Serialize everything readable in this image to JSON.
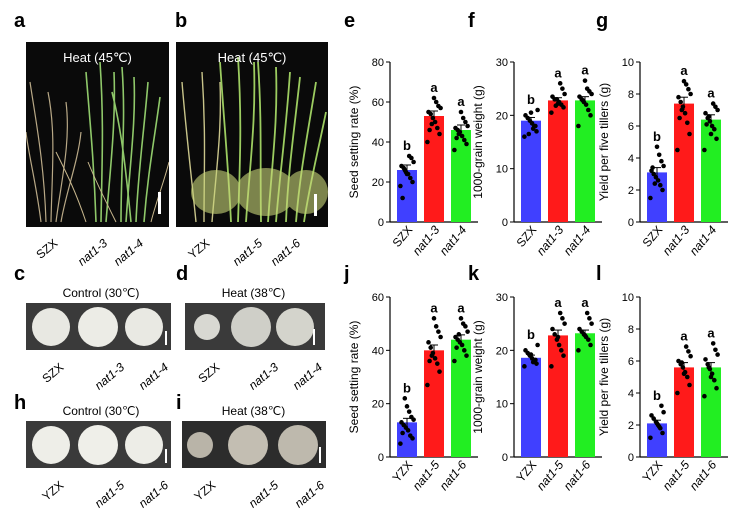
{
  "panel_letters": {
    "a": "a",
    "b": "b",
    "c": "c",
    "d": "d",
    "e": "e",
    "f": "f",
    "g": "g",
    "h": "h",
    "i": "i",
    "j": "j",
    "k": "k",
    "l": "l"
  },
  "photos": {
    "a": {
      "title": "Heat (45℃)",
      "labels": [
        "SZX",
        "nat1-3",
        "nat1-4"
      ]
    },
    "b": {
      "title": "Heat (45℃)",
      "labels": [
        "YZX",
        "nat1-5",
        "nat1-6"
      ]
    },
    "c": {
      "title": "Control (30℃)",
      "labels": [
        "SZX",
        "nat1-3",
        "nat1-4"
      ]
    },
    "d": {
      "title": "Heat (38℃)",
      "labels": [
        "SZX",
        "nat1-3",
        "nat1-4"
      ]
    },
    "h": {
      "title": "Control (30℃)",
      "labels": [
        "YZX",
        "nat1-5",
        "nat1-6"
      ]
    },
    "i": {
      "title": "Heat (38℃)",
      "labels": [
        "YZX",
        "nat1-5",
        "nat1-6"
      ]
    }
  },
  "colors": {
    "blue": "#4040ff",
    "red": "#ff1a1a",
    "green": "#22ee22"
  },
  "chart_data": [
    {
      "id": "e",
      "type": "bar",
      "ylabel": "Seed setting rate (%)",
      "ylim": [
        0,
        80
      ],
      "yticks": [
        0,
        20,
        40,
        60,
        80
      ],
      "categories": [
        "SZX",
        "nat1-3",
        "nat1-4"
      ],
      "values": [
        26,
        53,
        46
      ],
      "errors": [
        2.5,
        2.5,
        2.5
      ],
      "letters": [
        "b",
        "a",
        "a"
      ],
      "points": [
        [
          18,
          20,
          22,
          24,
          25,
          27,
          28,
          30,
          32,
          33,
          24,
          26,
          12
        ],
        [
          40,
          44,
          47,
          50,
          52,
          54,
          55,
          57,
          58,
          60,
          62,
          49,
          46
        ],
        [
          36,
          39,
          41,
          43,
          45,
          46,
          47,
          48,
          50,
          52,
          55,
          44,
          42
        ]
      ]
    },
    {
      "id": "f",
      "type": "bar",
      "ylabel": "1000-grain weight (g)",
      "ylim": [
        0,
        30
      ],
      "yticks": [
        0,
        10,
        20,
        30
      ],
      "categories": [
        "SZX",
        "nat1-3",
        "nat1-4"
      ],
      "values": [
        19,
        22.8,
        22.8
      ],
      "errors": [
        0.6,
        0.5,
        0.7
      ],
      "letters": [
        "b",
        "a",
        "a"
      ],
      "points": [
        [
          16,
          17,
          18,
          18.5,
          19,
          19.5,
          20,
          21,
          18,
          17.5,
          20.5,
          16.5
        ],
        [
          20.5,
          21.5,
          22,
          22.5,
          23,
          23,
          23.5,
          24,
          25,
          26,
          22.2,
          21.8
        ],
        [
          18,
          20,
          21,
          22,
          22.5,
          23,
          23.5,
          24,
          24.5,
          25,
          26.5,
          22.8
        ]
      ]
    },
    {
      "id": "g",
      "type": "bar",
      "ylabel": "Yield per five tillers (g)",
      "ylim": [
        0,
        10
      ],
      "yticks": [
        0,
        2,
        4,
        6,
        8,
        10
      ],
      "categories": [
        "SZX",
        "nat1-3",
        "nat1-4"
      ],
      "values": [
        3.1,
        7.4,
        6.4
      ],
      "errors": [
        0.3,
        0.4,
        0.3
      ],
      "letters": [
        "b",
        "a",
        "a"
      ],
      "points": [
        [
          1.5,
          2,
          2.3,
          2.6,
          2.8,
          3,
          3.2,
          3.5,
          3.8,
          4.2,
          4.7,
          2.4,
          3.4
        ],
        [
          4.5,
          5.5,
          6.2,
          6.8,
          7.2,
          7.5,
          7.8,
          8,
          8.3,
          8.6,
          8.8,
          7,
          6.5
        ],
        [
          4.5,
          5.2,
          5.8,
          6,
          6.3,
          6.5,
          6.8,
          7,
          7.2,
          7.4,
          5.5,
          6.6,
          6.1
        ]
      ]
    },
    {
      "id": "j",
      "type": "bar",
      "ylabel": "Seed setting rate (%)",
      "ylim": [
        0,
        60
      ],
      "yticks": [
        0,
        20,
        40,
        60
      ],
      "categories": [
        "YZX",
        "nat1-5",
        "nat1-6"
      ],
      "values": [
        13,
        40,
        44
      ],
      "errors": [
        1.5,
        2,
        1.8
      ],
      "letters": [
        "b",
        "a",
        "a"
      ],
      "points": [
        [
          5,
          7,
          8,
          10,
          11,
          12,
          13,
          14,
          15,
          17,
          19,
          22,
          9
        ],
        [
          27,
          32,
          35,
          37,
          39,
          41,
          43,
          45,
          47,
          49,
          52,
          38,
          36
        ],
        [
          36,
          38,
          40,
          42,
          43,
          44,
          45,
          47,
          49,
          50,
          52,
          46,
          41
        ]
      ]
    },
    {
      "id": "k",
      "type": "bar",
      "ylabel": "1000-grain weight (g)",
      "ylim": [
        0,
        30
      ],
      "yticks": [
        0,
        10,
        20,
        30
      ],
      "categories": [
        "YZX",
        "nat1-5",
        "nat1-6"
      ],
      "values": [
        18.6,
        22.8,
        23.2
      ],
      "errors": [
        0.5,
        1,
        0.6
      ],
      "letters": [
        "b",
        "a",
        "a"
      ],
      "points": [
        [
          17,
          17.5,
          18,
          18.5,
          19,
          19.5,
          20,
          21,
          18.2,
          17.8,
          19.2
        ],
        [
          17,
          19,
          20,
          21,
          22,
          23,
          24,
          25,
          26,
          27,
          22.5
        ],
        [
          20,
          21,
          22,
          22.5,
          23,
          23.5,
          24,
          25,
          26,
          27,
          22.8
        ]
      ]
    },
    {
      "id": "l",
      "type": "bar",
      "ylabel": "Yield per five tillers (g)",
      "ylim": [
        0,
        10
      ],
      "yticks": [
        0,
        2,
        4,
        6,
        8,
        10
      ],
      "categories": [
        "YZX",
        "nat1-5",
        "nat1-6"
      ],
      "values": [
        2.1,
        5.6,
        5.6
      ],
      "errors": [
        0.2,
        0.3,
        0.3
      ],
      "letters": [
        "b",
        "a",
        "a"
      ],
      "points": [
        [
          1.2,
          1.5,
          1.8,
          2,
          2.2,
          2.4,
          2.6,
          2.8,
          3.2,
          1.9,
          2.1
        ],
        [
          4,
          4.5,
          5,
          5.3,
          5.6,
          5.8,
          6,
          6.3,
          6.6,
          6.9,
          5.2,
          5.9
        ],
        [
          3.8,
          4.3,
          4.8,
          5.2,
          5.5,
          5.8,
          6.1,
          6.4,
          6.7,
          7.1,
          5,
          5.6
        ]
      ]
    }
  ]
}
